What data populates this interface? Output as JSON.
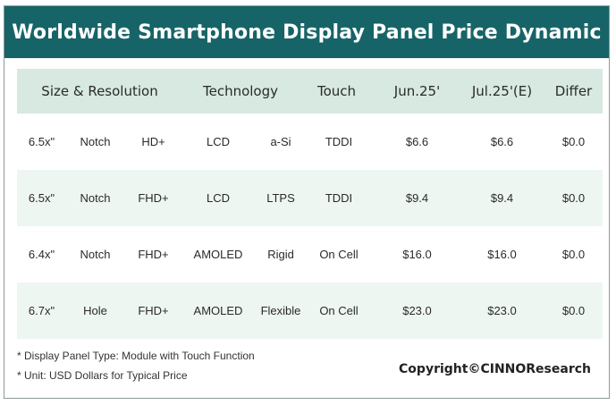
{
  "title": "Worldwide Smartphone Display Panel Price Dynamic",
  "colors": {
    "title_bar": "#176468",
    "header_row": "#d7e9e0",
    "shaded_row": "#eef6f1"
  },
  "table": {
    "headers": {
      "size_resolution": "Size & Resolution",
      "technology": "Technology",
      "touch": "Touch",
      "jun": "Jun.25'",
      "jul": "Jul.25'(E)",
      "differ": "Differ"
    },
    "rows": [
      {
        "size": "6.5x\"",
        "form": "Notch",
        "resolution": "HD+",
        "panel": "LCD",
        "substrate": "a-Si",
        "touch": "TDDI",
        "jun": "$6.6",
        "jul": "$6.6",
        "differ": "$0.0"
      },
      {
        "size": "6.5x\"",
        "form": "Notch",
        "resolution": "FHD+",
        "panel": "LCD",
        "substrate": "LTPS",
        "touch": "TDDI",
        "jun": "$9.4",
        "jul": "$9.4",
        "differ": "$0.0"
      },
      {
        "size": "6.4x\"",
        "form": "Notch",
        "resolution": "FHD+",
        "panel": "AMOLED",
        "substrate": "Rigid",
        "touch": "On Cell",
        "jun": "$16.0",
        "jul": "$16.0",
        "differ": "$0.0"
      },
      {
        "size": "6.7x\"",
        "form": "Hole",
        "resolution": "FHD+",
        "panel": "AMOLED",
        "substrate": "Flexible",
        "touch": "On Cell",
        "jun": "$23.0",
        "jul": "$23.0",
        "differ": "$0.0"
      }
    ]
  },
  "footnotes": {
    "panel_type": "* Display Panel Type:  Module with Touch Function",
    "unit": "* Unit:  USD Dollars for Typical Price"
  },
  "copyright": "Copyright©CINNOResearch"
}
